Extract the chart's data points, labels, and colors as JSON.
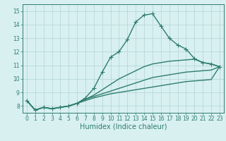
{
  "x": [
    0,
    1,
    2,
    3,
    4,
    5,
    6,
    7,
    8,
    9,
    10,
    11,
    12,
    13,
    14,
    15,
    16,
    17,
    18,
    19,
    20,
    21,
    22,
    23
  ],
  "line1": [
    8.4,
    7.7,
    7.9,
    7.8,
    7.9,
    8.0,
    8.2,
    8.6,
    9.3,
    10.5,
    11.6,
    12.0,
    12.9,
    14.2,
    14.7,
    14.8,
    13.9,
    13.0,
    12.5,
    12.2,
    11.5,
    11.2,
    11.1,
    10.9
  ],
  "line2": [
    8.4,
    7.7,
    7.9,
    7.8,
    7.9,
    8.0,
    8.2,
    8.5,
    8.8,
    9.2,
    9.6,
    10.0,
    10.3,
    10.6,
    10.9,
    11.1,
    11.2,
    11.3,
    11.35,
    11.4,
    11.45,
    11.2,
    11.1,
    10.9
  ],
  "line3": [
    8.4,
    7.7,
    7.9,
    7.8,
    7.9,
    8.0,
    8.2,
    8.5,
    8.7,
    8.9,
    9.1,
    9.3,
    9.5,
    9.7,
    9.9,
    10.1,
    10.2,
    10.3,
    10.4,
    10.5,
    10.55,
    10.6,
    10.65,
    10.9
  ],
  "line4": [
    8.4,
    7.7,
    7.9,
    7.8,
    7.9,
    8.0,
    8.2,
    8.4,
    8.6,
    8.75,
    8.9,
    9.0,
    9.1,
    9.2,
    9.3,
    9.4,
    9.5,
    9.6,
    9.7,
    9.8,
    9.85,
    9.9,
    9.95,
    10.9
  ],
  "line_color": "#2e7d6e",
  "bg_color": "#d8f0f0",
  "grid_color": "#b8d8d8",
  "xlabel": "Humidex (Indice chaleur)",
  "ylim": [
    7.5,
    15.5
  ],
  "xlim": [
    -0.5,
    23.5
  ],
  "yticks": [
    8,
    9,
    10,
    11,
    12,
    13,
    14,
    15
  ],
  "xticks": [
    0,
    1,
    2,
    3,
    4,
    5,
    6,
    7,
    8,
    9,
    10,
    11,
    12,
    13,
    14,
    15,
    16,
    17,
    18,
    19,
    20,
    21,
    22,
    23
  ],
  "marker": "+",
  "markersize": 4,
  "linewidth": 1.0,
  "tick_fontsize": 5.5,
  "xlabel_fontsize": 7
}
